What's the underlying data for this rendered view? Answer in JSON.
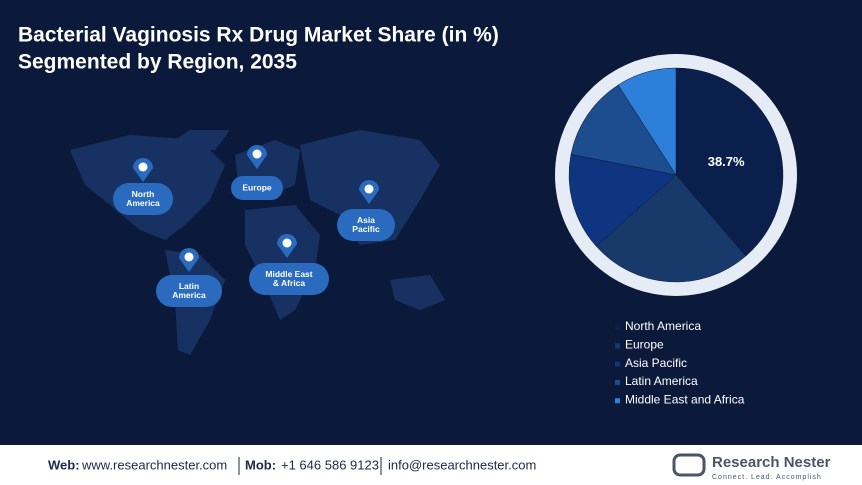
{
  "chart_data": {
    "type": "pie",
    "title": "Bacterial Vaginosis Rx Drug Market Share (in %)",
    "subtitle": "Segmented by Region, 2035",
    "categories": [
      "North America",
      "Europe",
      "Asia Pacific",
      "Latin America",
      "Middle East and Africa"
    ],
    "values": [
      38.7,
      24.7,
      14.7,
      12.8,
      9.1
    ],
    "value_labels": [
      "38.7%",
      null,
      null,
      null,
      null
    ],
    "colors": [
      "#0b1f4d",
      "#183a6b",
      "#0f3480",
      "#1d4d8f",
      "#2d7fd9"
    ],
    "legend": "bottom"
  },
  "map_labels": [
    [
      "North",
      "America"
    ],
    [
      "Europe"
    ],
    [
      "Asia",
      "Pacific"
    ],
    [
      "Latin",
      "America"
    ],
    [
      "Middle East",
      "& Africa"
    ]
  ],
  "footer": {
    "web_label": "Web:",
    "web": "www.researchnester.com",
    "mob_label": "Mob:",
    "mob": "+1 646 586 9123",
    "email": "info@researchnester.com",
    "brand": "Research Nester",
    "tagline": "Connect. Lead. Accomplish"
  }
}
